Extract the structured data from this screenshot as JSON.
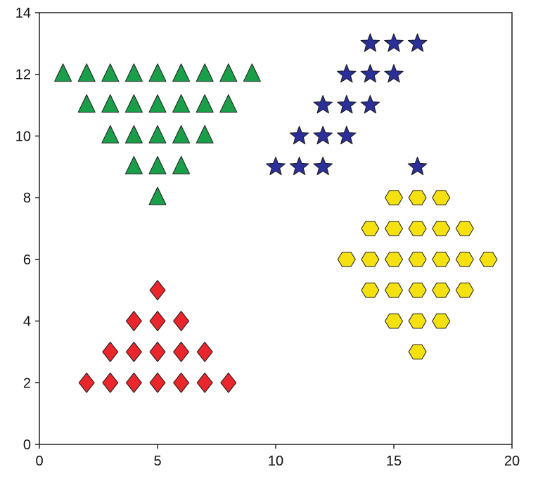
{
  "chart_data": {
    "type": "scatter",
    "title": "",
    "xlabel": "",
    "ylabel": "",
    "xlim": [
      0,
      20
    ],
    "ylim": [
      0,
      14
    ],
    "xticks": [
      0,
      5,
      10,
      15,
      20
    ],
    "yticks": [
      0,
      2,
      4,
      6,
      8,
      10,
      12,
      14
    ],
    "grid": false,
    "legend": "none",
    "series": [
      {
        "marker": "triangle",
        "color": "#1a9e4a",
        "points": [
          [
            1,
            12
          ],
          [
            2,
            12
          ],
          [
            3,
            12
          ],
          [
            4,
            12
          ],
          [
            5,
            12
          ],
          [
            6,
            12
          ],
          [
            7,
            12
          ],
          [
            8,
            12
          ],
          [
            9,
            12
          ],
          [
            2,
            11
          ],
          [
            3,
            11
          ],
          [
            4,
            11
          ],
          [
            5,
            11
          ],
          [
            6,
            11
          ],
          [
            7,
            11
          ],
          [
            8,
            11
          ],
          [
            3,
            10
          ],
          [
            4,
            10
          ],
          [
            5,
            10
          ],
          [
            6,
            10
          ],
          [
            7,
            10
          ],
          [
            4,
            9
          ],
          [
            5,
            9
          ],
          [
            6,
            9
          ],
          [
            5,
            8
          ]
        ]
      },
      {
        "marker": "star",
        "color": "#2b2f9a",
        "points": [
          [
            14,
            13
          ],
          [
            15,
            13
          ],
          [
            16,
            13
          ],
          [
            13,
            12
          ],
          [
            14,
            12
          ],
          [
            15,
            12
          ],
          [
            12,
            11
          ],
          [
            13,
            11
          ],
          [
            14,
            11
          ],
          [
            11,
            10
          ],
          [
            12,
            10
          ],
          [
            13,
            10
          ],
          [
            10,
            9
          ],
          [
            11,
            9
          ],
          [
            12,
            9
          ],
          [
            16,
            9
          ]
        ]
      },
      {
        "marker": "hexagon",
        "color": "#f5e10f",
        "points": [
          [
            15,
            8
          ],
          [
            16,
            8
          ],
          [
            17,
            8
          ],
          [
            14,
            7
          ],
          [
            15,
            7
          ],
          [
            16,
            7
          ],
          [
            17,
            7
          ],
          [
            18,
            7
          ],
          [
            13,
            6
          ],
          [
            14,
            6
          ],
          [
            15,
            6
          ],
          [
            16,
            6
          ],
          [
            17,
            6
          ],
          [
            18,
            6
          ],
          [
            19,
            6
          ],
          [
            14,
            5
          ],
          [
            15,
            5
          ],
          [
            16,
            5
          ],
          [
            17,
            5
          ],
          [
            18,
            5
          ],
          [
            15,
            4
          ],
          [
            16,
            4
          ],
          [
            17,
            4
          ],
          [
            16,
            3
          ]
        ]
      },
      {
        "marker": "diamond",
        "color": "#e8262c",
        "points": [
          [
            5,
            5
          ],
          [
            4,
            4
          ],
          [
            5,
            4
          ],
          [
            6,
            4
          ],
          [
            3,
            3
          ],
          [
            4,
            3
          ],
          [
            5,
            3
          ],
          [
            6,
            3
          ],
          [
            7,
            3
          ],
          [
            2,
            2
          ],
          [
            3,
            2
          ],
          [
            4,
            2
          ],
          [
            5,
            2
          ],
          [
            6,
            2
          ],
          [
            7,
            2
          ],
          [
            8,
            2
          ]
        ]
      }
    ]
  }
}
